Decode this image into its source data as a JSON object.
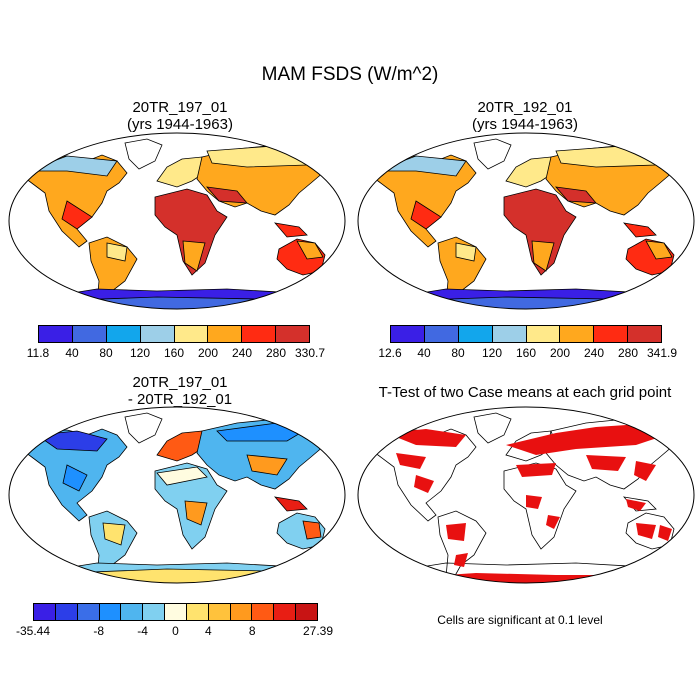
{
  "title": "MAM FSDS (W/m^2)",
  "panels": {
    "top_left": {
      "title1": "20TR_197_01",
      "title2": "(yrs 1944-1963)"
    },
    "top_right": {
      "title1": "20TR_192_01",
      "title2": "(yrs 1944-1963)"
    },
    "bottom_left": {
      "title1": "20TR_197_01",
      "title2": "- 20TR_192_01"
    },
    "bottom_right": {
      "title1": "T-Test of two Case means at each grid point"
    }
  },
  "colorbars": {
    "left": {
      "colors": [
        "#3a1fe6",
        "#4169e1",
        "#12a6ec",
        "#9dcfe8",
        "#ffe98a",
        "#ffa81e",
        "#ff2b12",
        "#d4302b"
      ],
      "labels": [
        "11.8",
        "40",
        "80",
        "120",
        "160",
        "200",
        "240",
        "280",
        "330.7"
      ]
    },
    "right": {
      "colors": [
        "#3a1fe6",
        "#4169e1",
        "#12a6ec",
        "#9dcfe8",
        "#ffe98a",
        "#ffa81e",
        "#ff2b12",
        "#d4302b"
      ],
      "labels": [
        "12.6",
        "40",
        "80",
        "120",
        "160",
        "200",
        "240",
        "280",
        "341.9"
      ]
    },
    "diff": {
      "colors": [
        "#3a1fe6",
        "#2c3ee8",
        "#3a6ee8",
        "#1e90ff",
        "#4fb5ef",
        "#80d0f0",
        "#fffce0",
        "#ffe36e",
        "#ffc23c",
        "#ff9a1e",
        "#ff5a14",
        "#e81e14",
        "#c81414"
      ],
      "labels": [
        "-35.44",
        "-8",
        "-4",
        "0",
        "4",
        "8",
        "27.39"
      ]
    }
  },
  "footnote": "Cells are significant at 0.1 level"
}
